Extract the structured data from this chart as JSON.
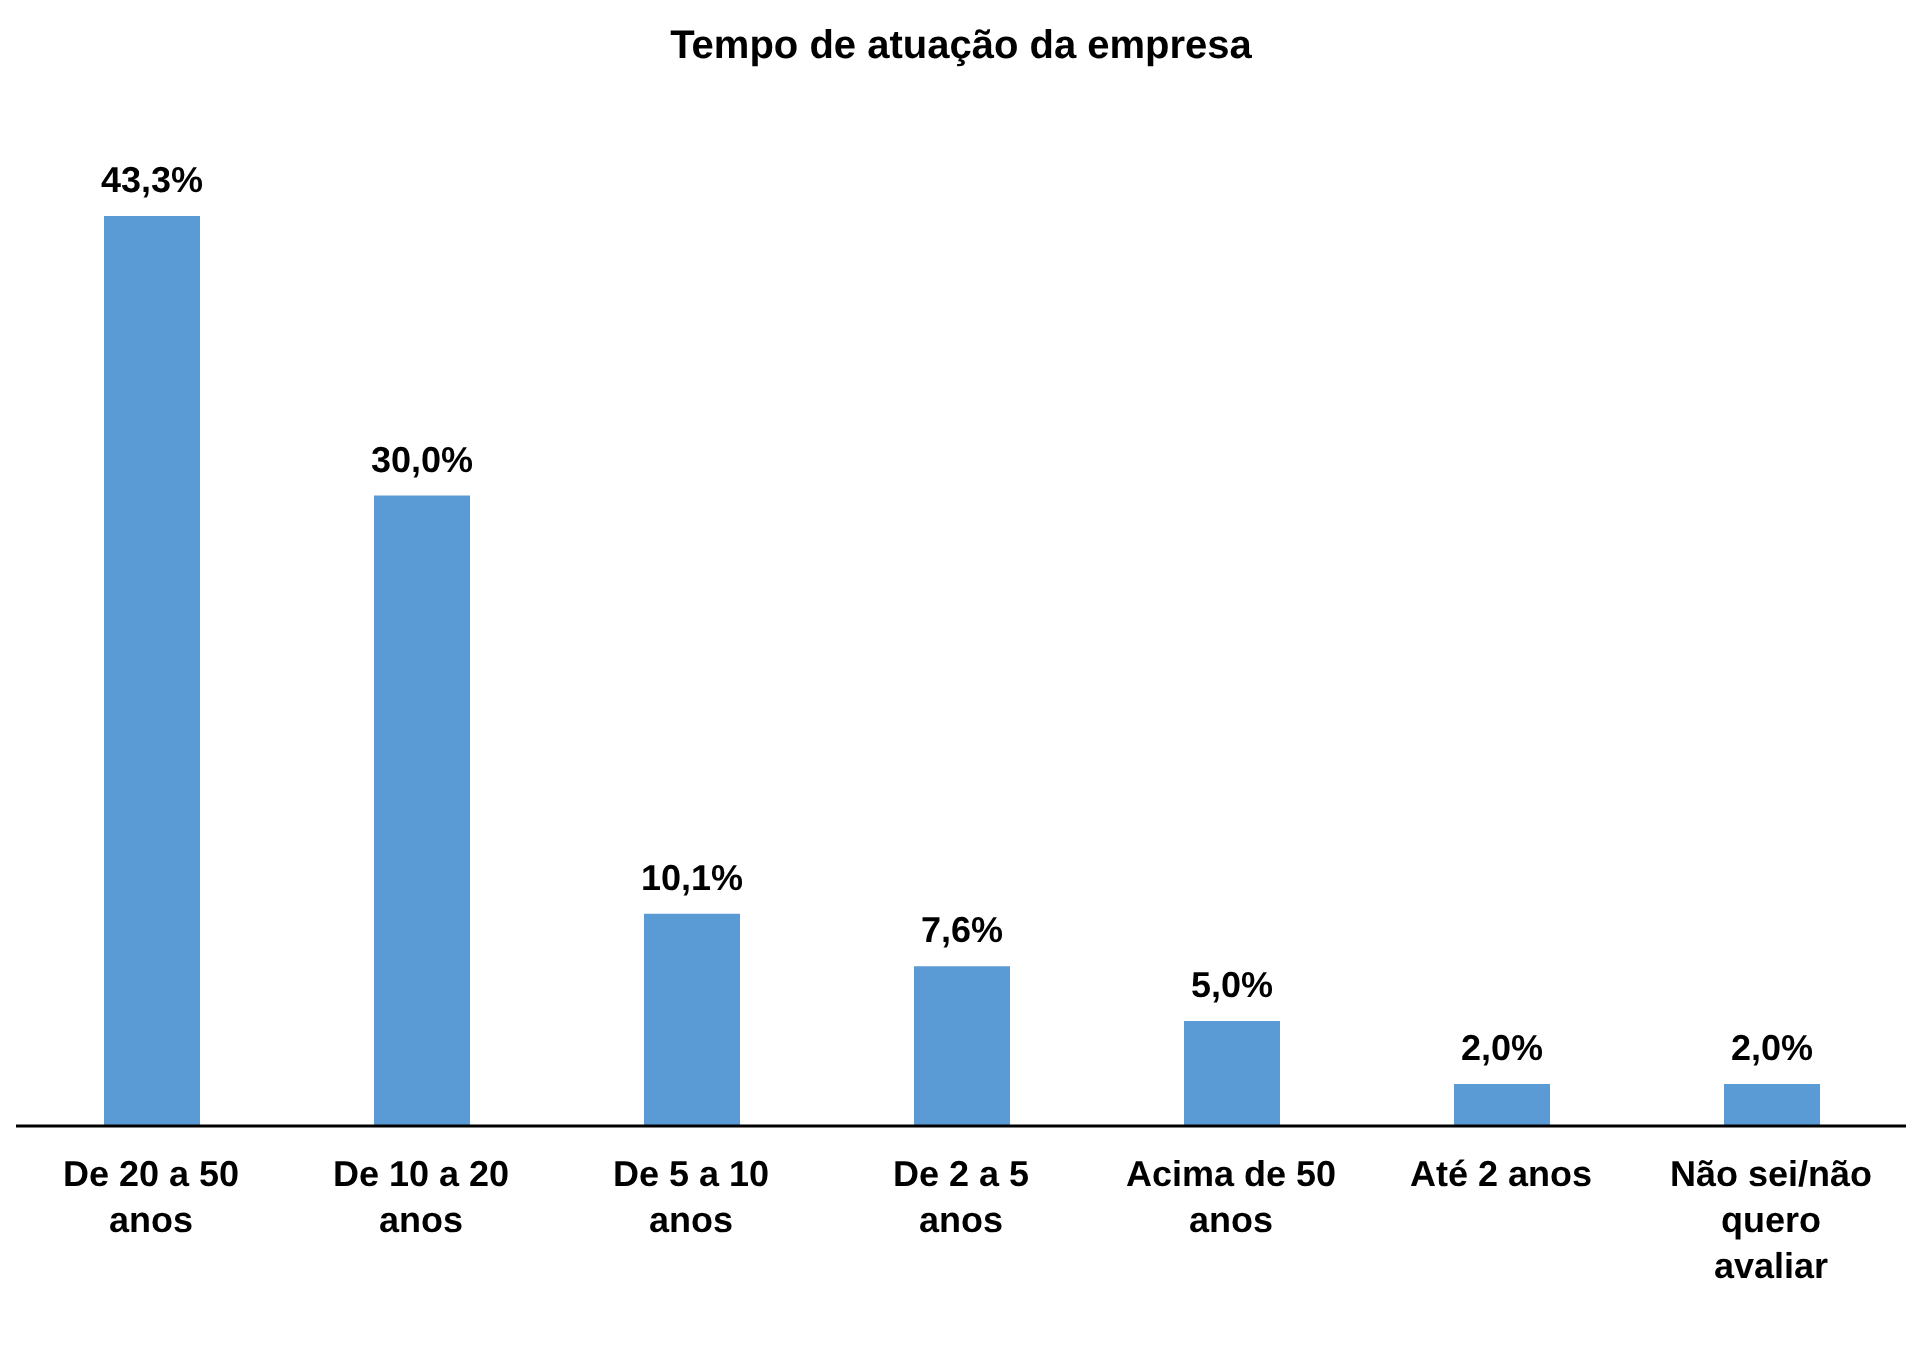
{
  "chart_data": {
    "type": "bar",
    "title": "Tempo de atuação da empresa",
    "categories": [
      "De 20 a 50 anos",
      "De 10 a 20 anos",
      "De 5 a 10 anos",
      "De 2 a 5 anos",
      "Acima de 50 anos",
      "Até 2 anos",
      "Não sei/não quero avaliar"
    ],
    "values": [
      43.3,
      30.0,
      10.1,
      7.6,
      5.0,
      2.0,
      2.0
    ],
    "value_labels": [
      "43,3%",
      "30,0%",
      "10,1%",
      "7,6%",
      "5,0%",
      "2,0%",
      "2,0%"
    ],
    "color": "#5b9bd5"
  }
}
